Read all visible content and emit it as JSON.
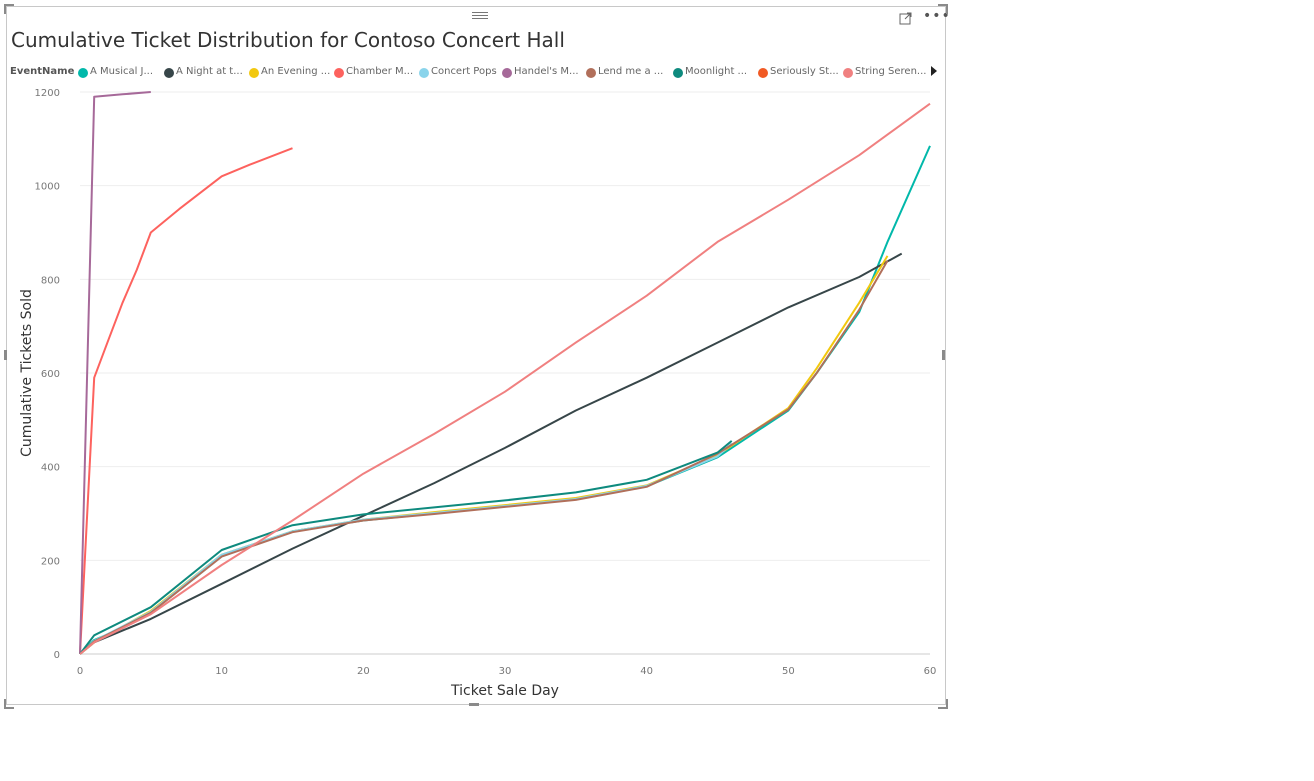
{
  "chart_data": {
    "type": "line",
    "title": "Cumulative Ticket Distribution for Contoso Concert Hall",
    "xlabel": "Ticket Sale Day",
    "ylabel": "Cumulative Tickets Sold",
    "xlim": [
      0,
      60
    ],
    "ylim": [
      0,
      1200
    ],
    "x_ticks": [
      0,
      10,
      20,
      30,
      40,
      50,
      60
    ],
    "y_ticks": [
      0,
      200,
      400,
      600,
      800,
      1000,
      1200
    ],
    "grid": true,
    "legend": {
      "title": "EventName",
      "placement": "top-left",
      "has_more": true
    },
    "series": [
      {
        "name": "A Musical J...",
        "color": "#01B8AA",
        "points": [
          [
            0,
            0
          ],
          [
            1,
            30
          ],
          [
            3,
            55
          ],
          [
            5,
            90
          ],
          [
            8,
            160
          ],
          [
            10,
            210
          ],
          [
            15,
            262
          ],
          [
            20,
            285
          ],
          [
            25,
            300
          ],
          [
            30,
            315
          ],
          [
            35,
            330
          ],
          [
            40,
            358
          ],
          [
            45,
            420
          ],
          [
            50,
            520
          ],
          [
            52,
            600
          ],
          [
            55,
            730
          ],
          [
            57,
            880
          ],
          [
            60,
            1085
          ]
        ]
      },
      {
        "name": "A Night at t...",
        "color": "#374649",
        "points": [
          [
            0,
            0
          ],
          [
            1,
            25
          ],
          [
            5,
            75
          ],
          [
            10,
            150
          ],
          [
            15,
            225
          ],
          [
            20,
            295
          ],
          [
            25,
            365
          ],
          [
            30,
            440
          ],
          [
            35,
            520
          ],
          [
            40,
            590
          ],
          [
            45,
            665
          ],
          [
            50,
            740
          ],
          [
            55,
            805
          ],
          [
            58,
            855
          ]
        ]
      },
      {
        "name": "An Evening ...",
        "color": "#F2C80F",
        "points": [
          [
            0,
            0
          ],
          [
            1,
            25
          ],
          [
            5,
            92
          ],
          [
            10,
            212
          ],
          [
            15,
            262
          ],
          [
            20,
            287
          ],
          [
            25,
            303
          ],
          [
            30,
            318
          ],
          [
            35,
            333
          ],
          [
            40,
            360
          ],
          [
            45,
            425
          ],
          [
            50,
            525
          ],
          [
            52,
            610
          ],
          [
            55,
            750
          ],
          [
            57,
            850
          ]
        ]
      },
      {
        "name": "Chamber M...",
        "color": "#FD625E",
        "points": [
          [
            0,
            0
          ],
          [
            1,
            590
          ],
          [
            2,
            670
          ],
          [
            3,
            750
          ],
          [
            4,
            820
          ],
          [
            5,
            900
          ],
          [
            7,
            950
          ],
          [
            10,
            1020
          ],
          [
            12,
            1045
          ],
          [
            15,
            1080
          ]
        ]
      },
      {
        "name": "Concert Pops",
        "color": "#8AD4EB",
        "points": [
          [
            0,
            0
          ],
          [
            1,
            28
          ],
          [
            5,
            90
          ],
          [
            10,
            212
          ],
          [
            15,
            262
          ],
          [
            20,
            287
          ],
          [
            25,
            301
          ],
          [
            30,
            316
          ],
          [
            35,
            331
          ],
          [
            40,
            359
          ],
          [
            45,
            422
          ],
          [
            46,
            450
          ]
        ]
      },
      {
        "name": "Handel's M...",
        "color": "#A66999",
        "points": [
          [
            0,
            0
          ],
          [
            1,
            1190
          ],
          [
            3,
            1195
          ],
          [
            5,
            1200
          ]
        ]
      },
      {
        "name": "Lend me a ...",
        "color": "#B16F5A",
        "points": [
          [
            0,
            0
          ],
          [
            1,
            27
          ],
          [
            5,
            88
          ],
          [
            10,
            208
          ],
          [
            15,
            260
          ],
          [
            20,
            285
          ],
          [
            25,
            299
          ],
          [
            30,
            314
          ],
          [
            35,
            329
          ],
          [
            40,
            357
          ],
          [
            45,
            428
          ],
          [
            50,
            522
          ],
          [
            52,
            600
          ],
          [
            55,
            735
          ],
          [
            57,
            840
          ]
        ]
      },
      {
        "name": "Moonlight ...",
        "color": "#0E8A7E",
        "points": [
          [
            0,
            0
          ],
          [
            1,
            40
          ],
          [
            5,
            100
          ],
          [
            10,
            222
          ],
          [
            15,
            275
          ],
          [
            20,
            298
          ],
          [
            25,
            313
          ],
          [
            30,
            328
          ],
          [
            35,
            345
          ],
          [
            40,
            372
          ],
          [
            45,
            430
          ],
          [
            46,
            455
          ]
        ]
      },
      {
        "name": "Seriously St...",
        "color": "#F15A24",
        "points": []
      },
      {
        "name": "String Seren...",
        "color": "#F08080",
        "points": [
          [
            0,
            0
          ],
          [
            1,
            25
          ],
          [
            5,
            85
          ],
          [
            10,
            190
          ],
          [
            15,
            285
          ],
          [
            20,
            385
          ],
          [
            25,
            470
          ],
          [
            30,
            560
          ],
          [
            35,
            665
          ],
          [
            40,
            765
          ],
          [
            45,
            880
          ],
          [
            50,
            970
          ],
          [
            55,
            1065
          ],
          [
            60,
            1175
          ]
        ]
      }
    ]
  }
}
